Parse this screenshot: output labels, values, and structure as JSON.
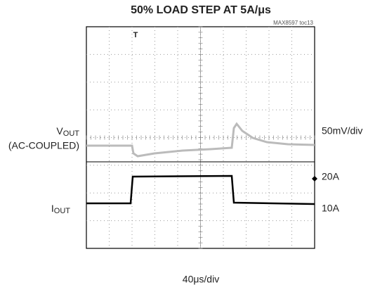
{
  "title": "50% LOAD STEP AT 5A/μs",
  "figure_id": "MAX8597 toc13",
  "left_labels": {
    "vout": {
      "main": "V",
      "sub": "OUT"
    },
    "vout_note": "(AC-COUPLED)",
    "iout": {
      "main": "I",
      "sub": "OUT"
    }
  },
  "right_labels": {
    "vout_scale": "50mV/div",
    "iout_high": "20A",
    "iout_low": "10A"
  },
  "time_scale": "40μs/div"
}
